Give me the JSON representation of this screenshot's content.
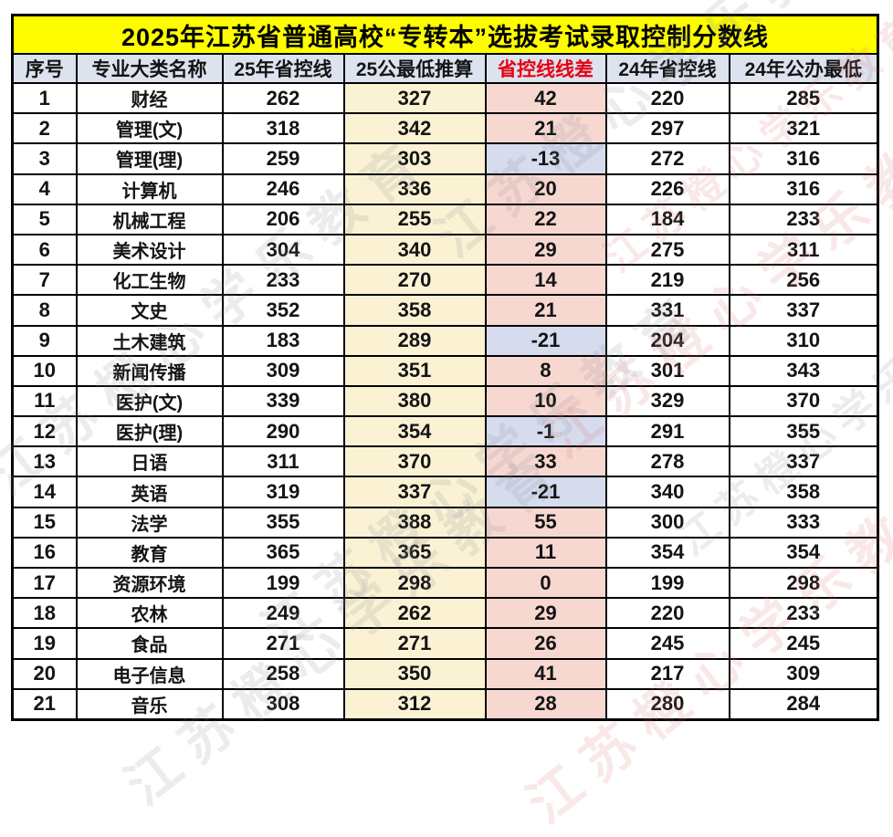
{
  "title": "2025年江苏省普通高校“专转本”选拔考试录取控制分数线",
  "columns": [
    "序号",
    "专业大类名称",
    "25年省控线",
    "25公最低推算",
    "省控线线差",
    "24年省控线",
    "24年公办最低"
  ],
  "rows": [
    [
      "1",
      "财经",
      "262",
      "327",
      "42",
      "220",
      "285"
    ],
    [
      "2",
      "管理(文)",
      "318",
      "342",
      "21",
      "297",
      "321"
    ],
    [
      "3",
      "管理(理)",
      "259",
      "303",
      "-13",
      "272",
      "316"
    ],
    [
      "4",
      "计算机",
      "246",
      "336",
      "20",
      "226",
      "316"
    ],
    [
      "5",
      "机械工程",
      "206",
      "255",
      "22",
      "184",
      "233"
    ],
    [
      "6",
      "美术设计",
      "304",
      "340",
      "29",
      "275",
      "311"
    ],
    [
      "7",
      "化工生物",
      "233",
      "270",
      "14",
      "219",
      "256"
    ],
    [
      "8",
      "文史",
      "352",
      "358",
      "21",
      "331",
      "337"
    ],
    [
      "9",
      "土木建筑",
      "183",
      "289",
      "-21",
      "204",
      "310"
    ],
    [
      "10",
      "新闻传播",
      "309",
      "351",
      "8",
      "301",
      "343"
    ],
    [
      "11",
      "医护(文)",
      "339",
      "380",
      "10",
      "329",
      "370"
    ],
    [
      "12",
      "医护(理)",
      "290",
      "354",
      "-1",
      "291",
      "355"
    ],
    [
      "13",
      "日语",
      "311",
      "370",
      "33",
      "278",
      "337"
    ],
    [
      "14",
      "英语",
      "319",
      "337",
      "-21",
      "340",
      "358"
    ],
    [
      "15",
      "法学",
      "355",
      "388",
      "55",
      "300",
      "333"
    ],
    [
      "16",
      "教育",
      "365",
      "365",
      "11",
      "354",
      "354"
    ],
    [
      "17",
      "资源环境",
      "199",
      "298",
      "0",
      "199",
      "298"
    ],
    [
      "18",
      "农林",
      "249",
      "262",
      "29",
      "220",
      "233"
    ],
    [
      "19",
      "食品",
      "271",
      "271",
      "26",
      "245",
      "245"
    ],
    [
      "20",
      "电子信息",
      "258",
      "350",
      "41",
      "217",
      "309"
    ],
    [
      "21",
      "音乐",
      "308",
      "312",
      "28",
      "280",
      "284"
    ]
  ],
  "colors": {
    "title_bg": "#fdfd00",
    "header_bg": "#dce3ef",
    "estimate_col_bg": "#fbf2d4",
    "diff_positive_bg": "#f7d8d1",
    "diff_negative_bg": "#d6dcee",
    "diff_header_text": "#e60012",
    "border": "#000000"
  },
  "watermark": {
    "text": "江苏橙心学乐教育"
  }
}
